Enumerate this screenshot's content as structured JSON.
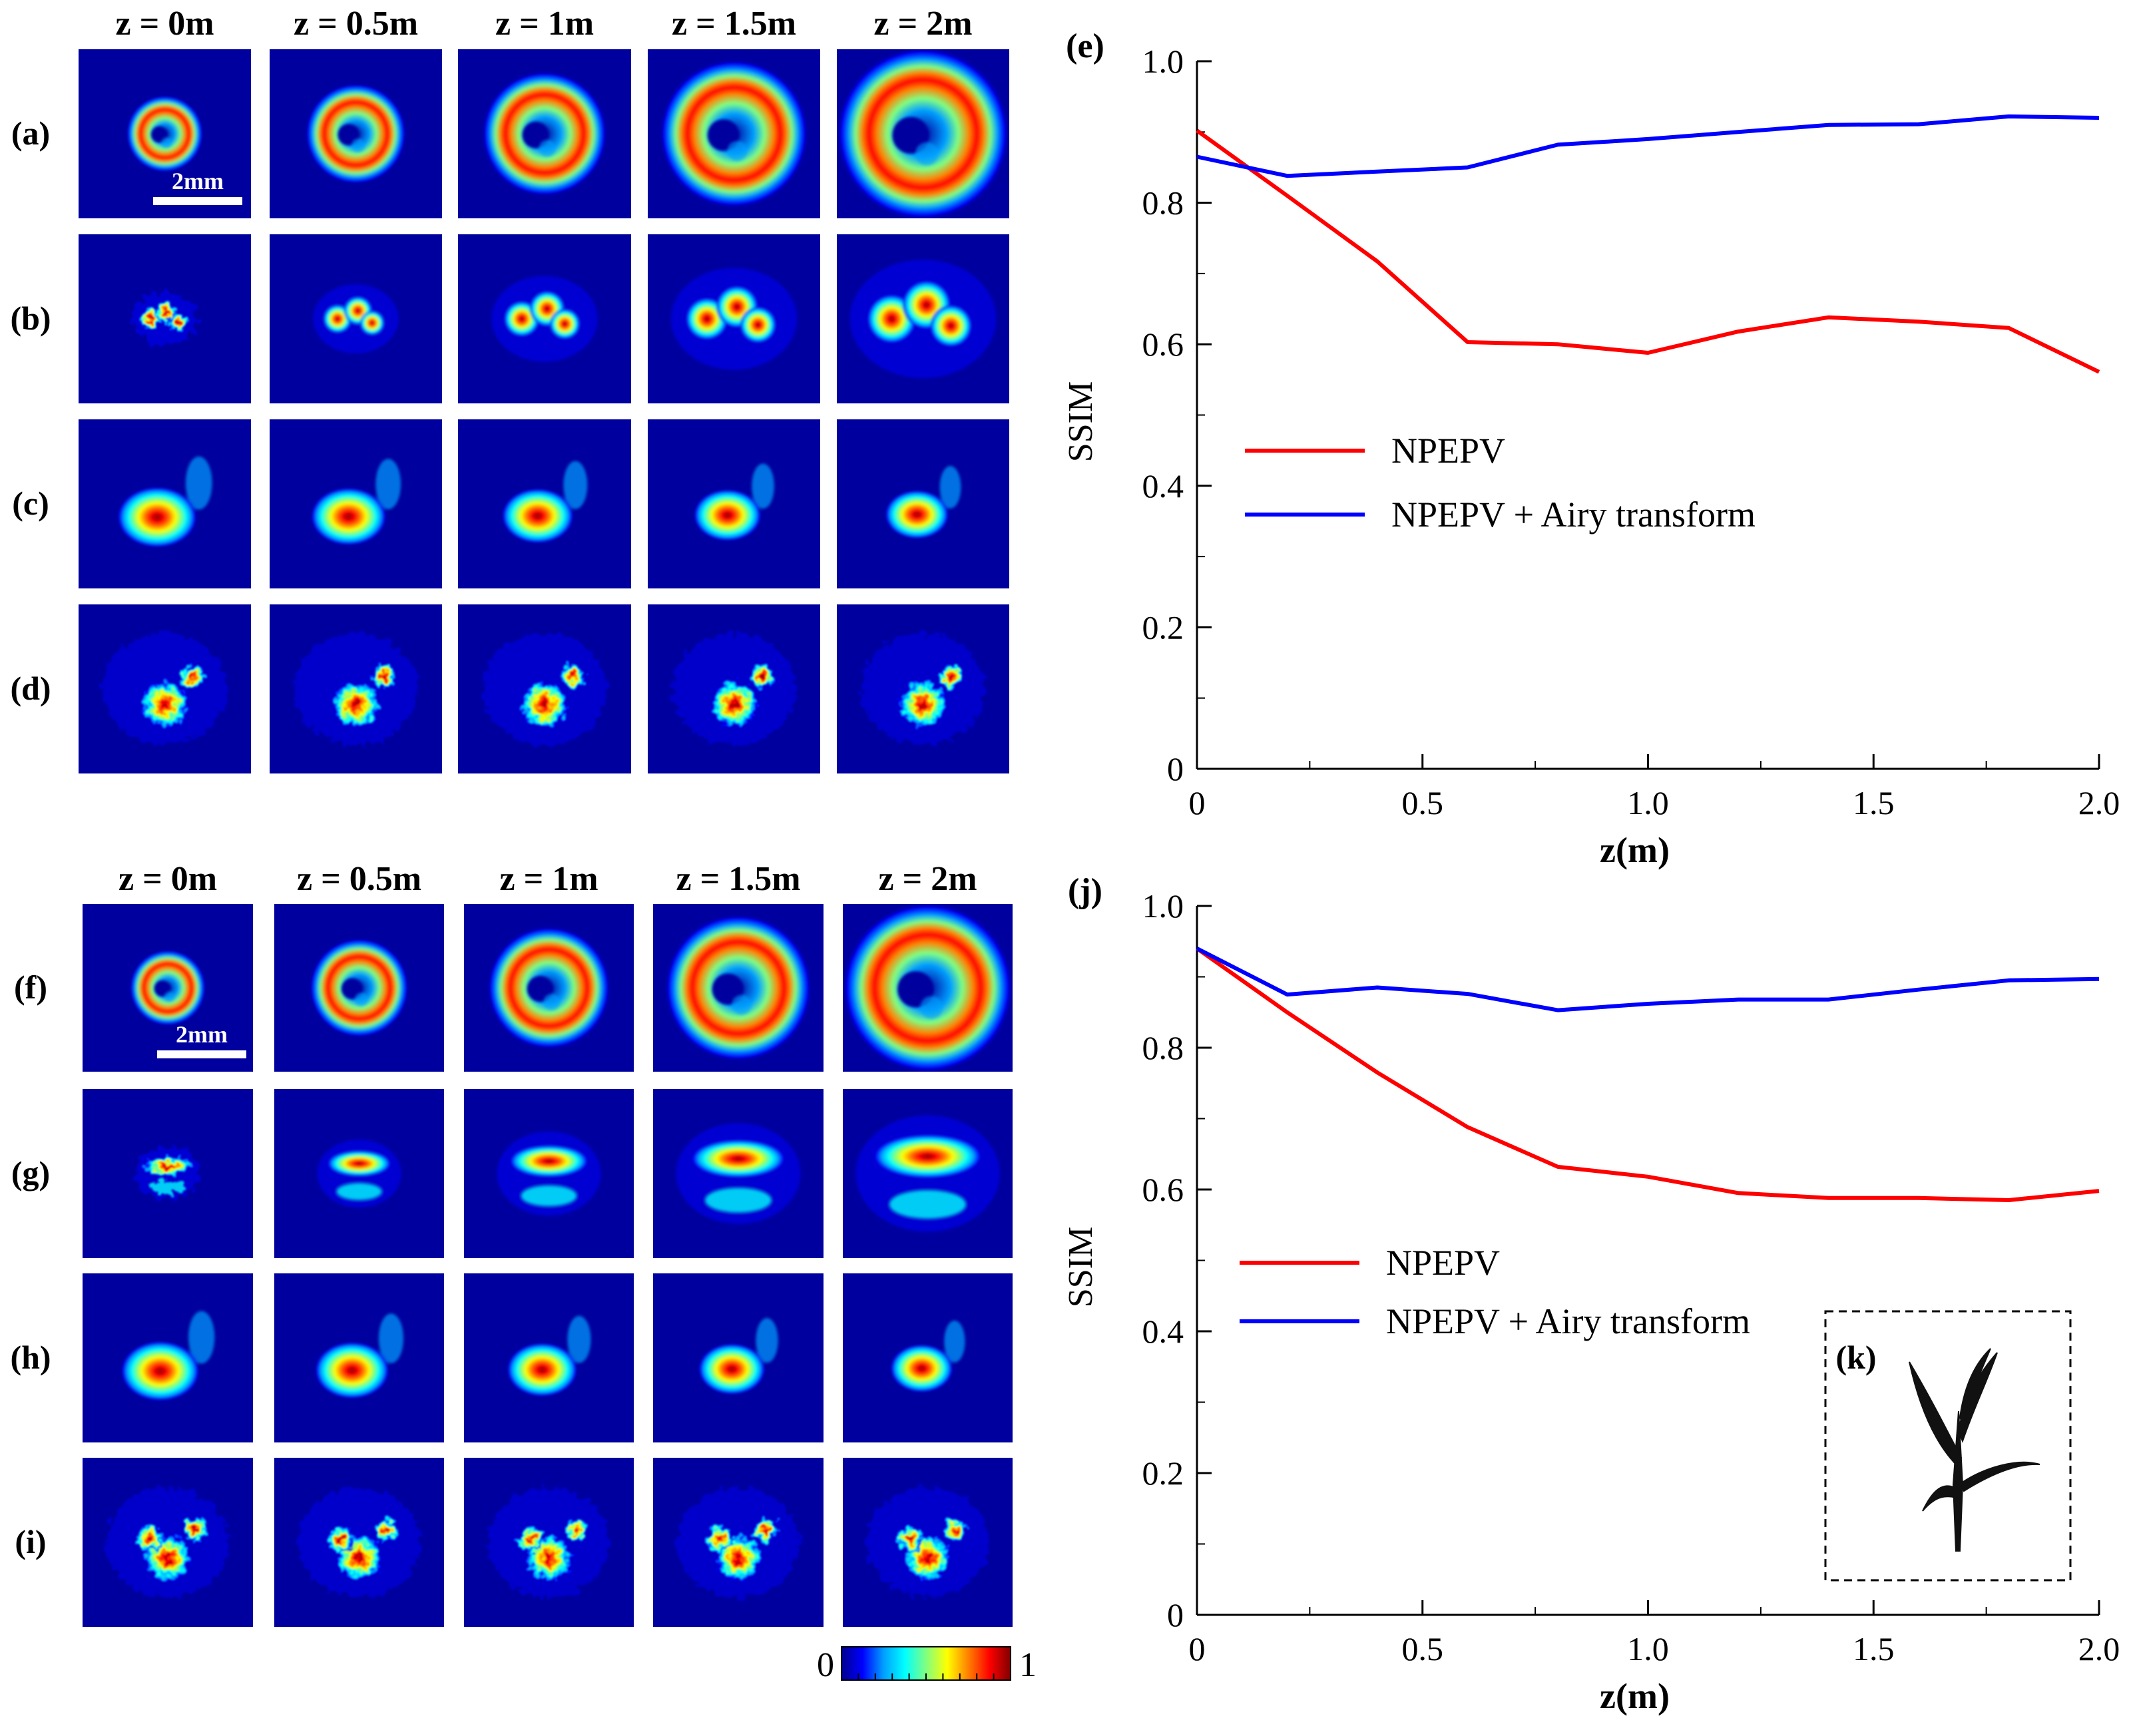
{
  "colors": {
    "beam_background": "#00009e",
    "npepv": "#ff0000",
    "airy": "#0000ff",
    "colormap": [
      "#00008f",
      "#0000ff",
      "#00a0ff",
      "#00ffff",
      "#80ff80",
      "#ffff00",
      "#ff8000",
      "#ff0000",
      "#800000"
    ]
  },
  "panel_groups": [
    {
      "column_headers": [
        "z = 0m",
        "z = 0.5m",
        "z = 1m",
        "z = 1.5m",
        "z = 2m"
      ],
      "rows": [
        {
          "label": "(a)",
          "pattern": "vortex-ring"
        },
        {
          "label": "(b)",
          "pattern": "speckled-ring"
        },
        {
          "label": "(c)",
          "pattern": "airy-lobe"
        },
        {
          "label": "(d)",
          "pattern": "noisy-airy"
        }
      ],
      "scale_bar": "2mm"
    },
    {
      "column_headers": [
        "z = 0m",
        "z = 0.5m",
        "z = 1m",
        "z = 1.5m",
        "z = 2m"
      ],
      "rows": [
        {
          "label": "(f)",
          "pattern": "vortex-ring"
        },
        {
          "label": "(g)",
          "pattern": "arc"
        },
        {
          "label": "(h)",
          "pattern": "airy-lobe"
        },
        {
          "label": "(i)",
          "pattern": "noisy-airy-arc"
        }
      ],
      "scale_bar": "2mm"
    }
  ],
  "colorbar": {
    "min_label": "0",
    "max_label": "1",
    "icon": "jet-colorbar"
  },
  "inset": {
    "label": "(k)",
    "icon": "plant-seedling-icon"
  },
  "chart_data": [
    {
      "type": "line",
      "panel_label": "(e)",
      "xlabel": "z(m)",
      "ylabel": "SSIM",
      "xlim": [
        0,
        2.0
      ],
      "ylim": [
        0,
        1.0
      ],
      "x_ticks": [
        "0",
        "0.5",
        "1.0",
        "1.5",
        "2.0"
      ],
      "y_ticks": [
        "0",
        "0.2",
        "0.4",
        "0.6",
        "0.8",
        "1.0"
      ],
      "grid": false,
      "legend_position": "center-left",
      "series": [
        {
          "name": "NPEPV",
          "color": "#ff0000",
          "x": [
            0,
            0.2,
            0.4,
            0.6,
            0.8,
            1.0,
            1.2,
            1.4,
            1.6,
            1.8,
            2.0
          ],
          "y": [
            0.902,
            0.81,
            0.717,
            0.603,
            0.6,
            0.588,
            0.618,
            0.638,
            0.632,
            0.623,
            0.561
          ]
        },
        {
          "name": "NPEPV + Airy transform",
          "color": "#0000ff",
          "x": [
            0,
            0.2,
            0.4,
            0.6,
            0.8,
            1.0,
            1.2,
            1.4,
            1.6,
            1.8,
            2.0
          ],
          "y": [
            0.865,
            0.838,
            0.844,
            0.85,
            0.882,
            0.89,
            0.9,
            0.91,
            0.911,
            0.922,
            0.92
          ]
        }
      ]
    },
    {
      "type": "line",
      "panel_label": "(j)",
      "xlabel": "z(m)",
      "ylabel": "SSIM",
      "xlim": [
        0,
        2.0
      ],
      "ylim": [
        0,
        1.0
      ],
      "x_ticks": [
        "0",
        "0.5",
        "1.0",
        "1.5",
        "2.0"
      ],
      "y_ticks": [
        "0",
        "0.2",
        "0.4",
        "0.6",
        "0.8",
        "1.0"
      ],
      "grid": false,
      "legend_position": "center-left",
      "series": [
        {
          "name": "NPEPV",
          "color": "#ff0000",
          "x": [
            0,
            0.2,
            0.4,
            0.6,
            0.8,
            1.0,
            1.2,
            1.4,
            1.6,
            1.8,
            2.0
          ],
          "y": [
            0.94,
            0.85,
            0.765,
            0.688,
            0.632,
            0.618,
            0.595,
            0.588,
            0.588,
            0.585,
            0.598
          ]
        },
        {
          "name": "NPEPV + Airy transform",
          "color": "#0000ff",
          "x": [
            0,
            0.2,
            0.4,
            0.6,
            0.8,
            1.0,
            1.2,
            1.4,
            1.6,
            1.8,
            2.0
          ],
          "y": [
            0.94,
            0.875,
            0.885,
            0.876,
            0.853,
            0.862,
            0.868,
            0.868,
            0.882,
            0.895,
            0.897
          ]
        }
      ]
    }
  ]
}
